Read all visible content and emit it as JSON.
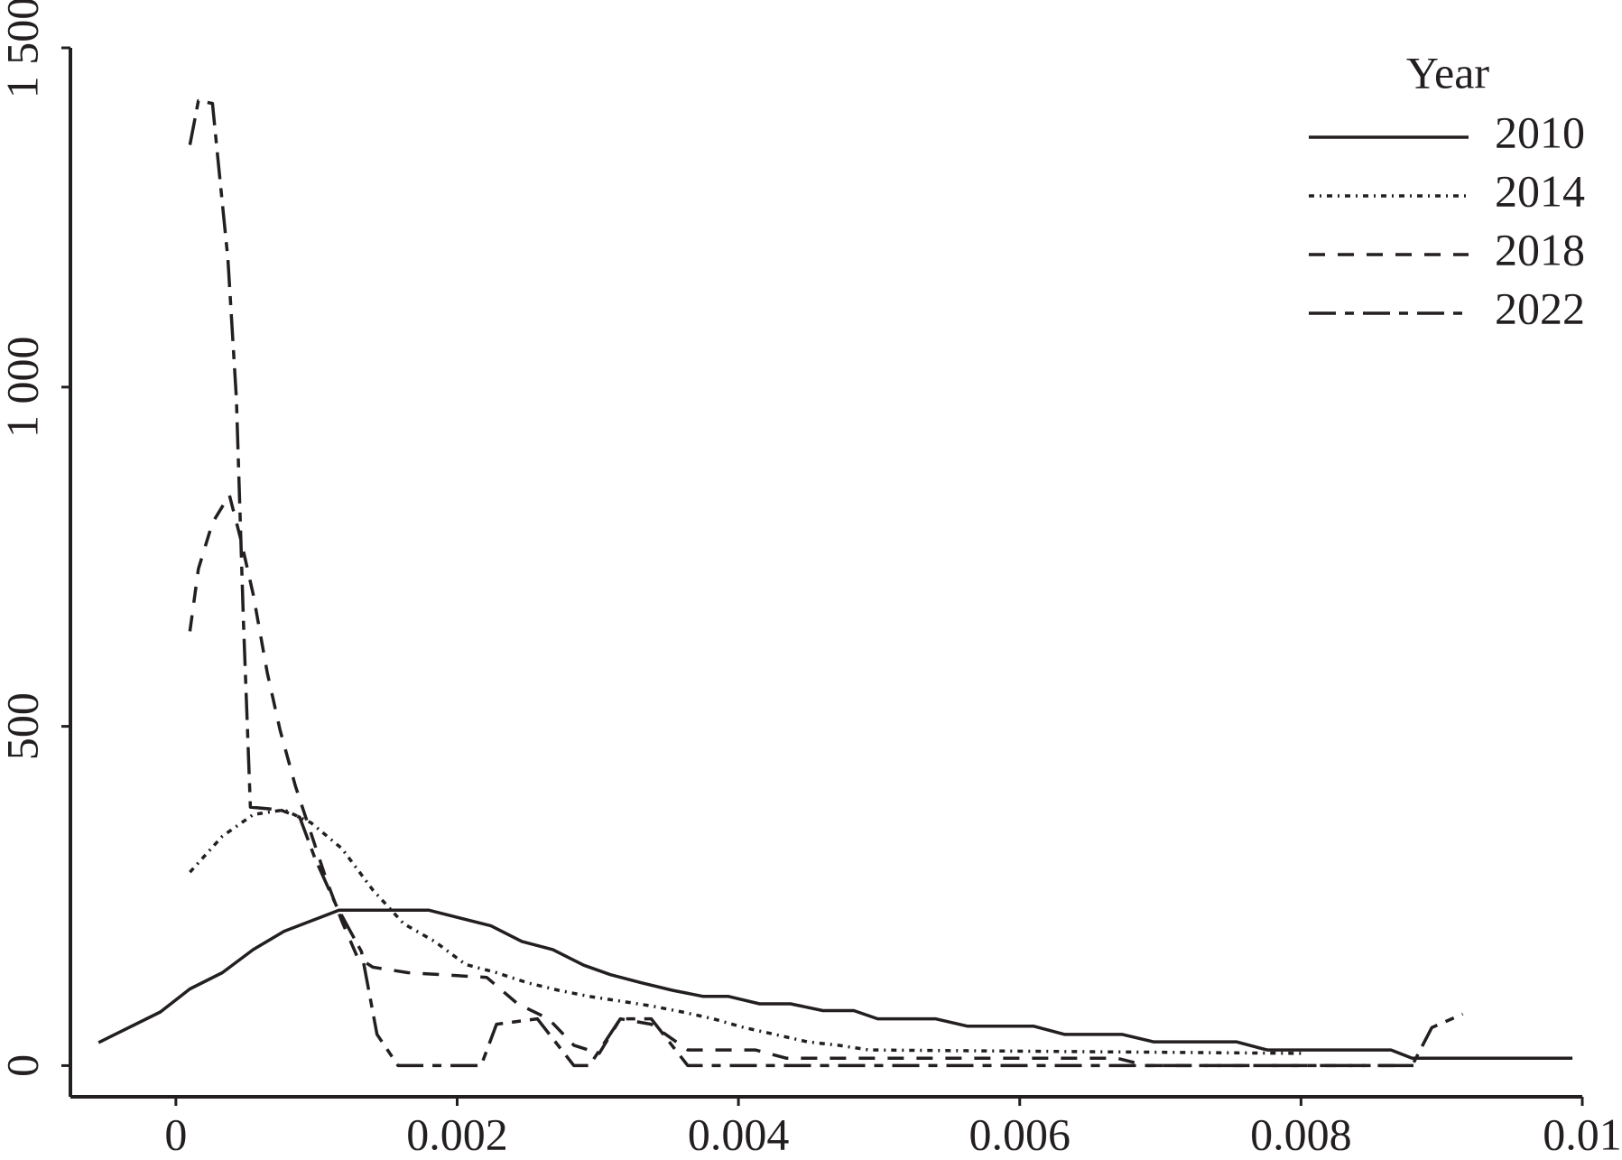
{
  "chart_data": {
    "type": "line",
    "xlim": [
      -0.00075,
      0.01
    ],
    "ylim": [
      -46,
      1500
    ],
    "xticks": [
      0,
      0.002,
      0.004,
      0.006,
      0.008,
      0.01
    ],
    "yticks": [
      0,
      500,
      {
        "value": 1000,
        "label": "1 000"
      },
      {
        "value": 1500,
        "label": "1 500"
      }
    ],
    "grid": false,
    "legend_title": "Year",
    "legend_position": "upper right",
    "series": [
      {
        "name": "2010",
        "color": "#231f20",
        "line_style": "solid",
        "x": [
          -0.00055,
          -0.00011,
          0.0001,
          0.00033,
          0.00055,
          0.00077,
          0.00096,
          0.00116,
          0.0018,
          0.00224,
          0.00246,
          0.00268,
          0.0029,
          0.00309,
          0.00331,
          0.00353,
          0.00375,
          0.00393,
          0.00415,
          0.00437,
          0.0046,
          0.00482,
          0.00499,
          0.0054,
          0.00563,
          0.0061,
          0.00632,
          0.00673,
          0.00695,
          0.00754,
          0.00776,
          0.00864,
          0.00879,
          0.00993
        ],
        "values": [
          34,
          79,
          113,
          137,
          171,
          198,
          213,
          229,
          229,
          206,
          183,
          171,
          148,
          134,
          122,
          111,
          102,
          102,
          91,
          91,
          81,
          81,
          69,
          69,
          58,
          58,
          46,
          46,
          35,
          35,
          23,
          23,
          11,
          11
        ]
      },
      {
        "name": "2014",
        "color": "#231f20",
        "line_style": "dotted",
        "x": [
          0.0001,
          0.00033,
          0.00055,
          0.00077,
          0.00096,
          0.00118,
          0.0014,
          0.00162,
          0.00184,
          0.00206,
          0.00228,
          0.0025,
          0.00272,
          0.00294,
          0.00316,
          0.00338,
          0.0036,
          0.00382,
          0.00404,
          0.00426,
          0.00449,
          0.00471,
          0.00493,
          0.00801
        ],
        "values": [
          285,
          338,
          370,
          377,
          358,
          320,
          259,
          209,
          183,
          149,
          137,
          122,
          111,
          102,
          95,
          88,
          79,
          69,
          56,
          46,
          35,
          30,
          23,
          18
        ]
      },
      {
        "name": "2018",
        "color": "#231f20",
        "line_style": "dashed",
        "x": [
          0.0001,
          0.00016,
          0.00026,
          0.00038,
          0.00046,
          0.00055,
          0.00065,
          0.00074,
          0.00085,
          0.00096,
          0.00107,
          0.00118,
          0.00129,
          0.0014,
          0.00165,
          0.00221,
          0.00243,
          0.00265,
          0.00283,
          0.00301,
          0.00316,
          0.00338,
          0.00364,
          0.00412,
          0.00434,
          0.005,
          0.00669,
          0.0069,
          0.0088
        ],
        "values": [
          640,
          732,
          800,
          841,
          777,
          694,
          579,
          495,
          412,
          343,
          274,
          213,
          160,
          145,
          137,
          130,
          91,
          69,
          30,
          18,
          69,
          61,
          23,
          23,
          11,
          11,
          11,
          0,
          0
        ]
      },
      {
        "name": "2022",
        "color": "#231f20",
        "line_style": "longdash",
        "x": [
          0.0001,
          0.00016,
          0.00026,
          0.0003,
          0.00037,
          0.00043,
          0.00048,
          0.00053,
          0.00074,
          0.00088,
          0.00099,
          0.00114,
          0.00132,
          0.00143,
          0.00158,
          0.00217,
          0.00228,
          0.00257,
          0.00283,
          0.00294,
          0.00316,
          0.00338,
          0.00364,
          0.00879,
          0.00893,
          0.00915
        ],
        "values": [
          1357,
          1422,
          1418,
          1334,
          1189,
          983,
          655,
          381,
          377,
          366,
          305,
          236,
          168,
          46,
          0,
          0,
          61,
          69,
          0,
          0,
          69,
          69,
          0,
          0,
          56,
          76
        ]
      }
    ]
  }
}
